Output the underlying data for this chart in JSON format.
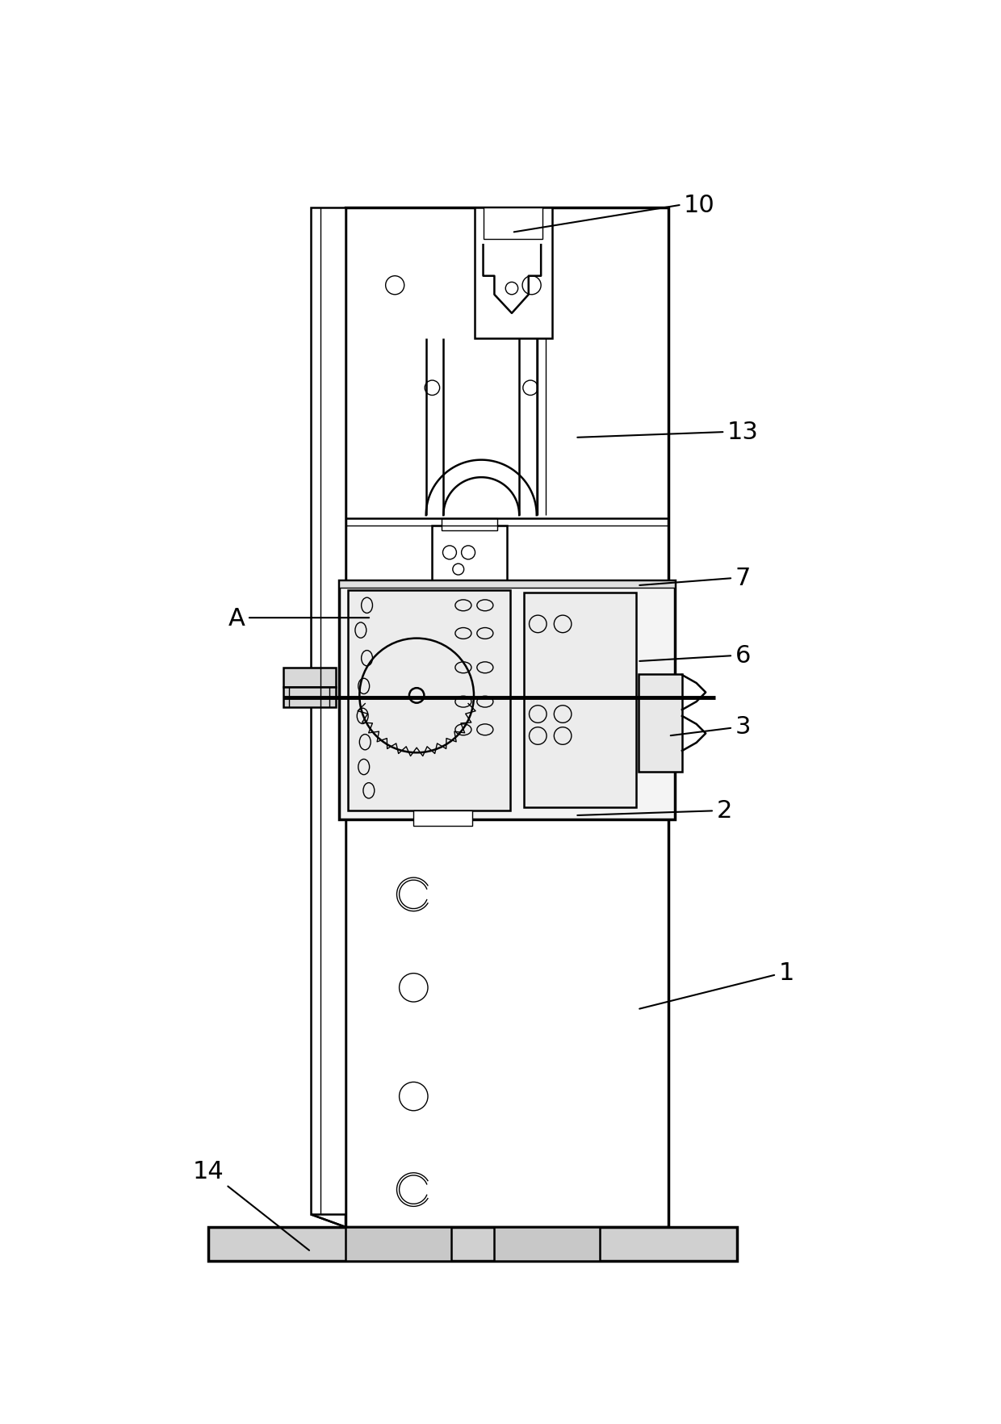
{
  "bg_color": "#ffffff",
  "line_color": "#000000",
  "fig_width": 12.4,
  "fig_height": 17.65,
  "lw_thick": 2.5,
  "lw_main": 1.8,
  "lw_thin": 1.0
}
